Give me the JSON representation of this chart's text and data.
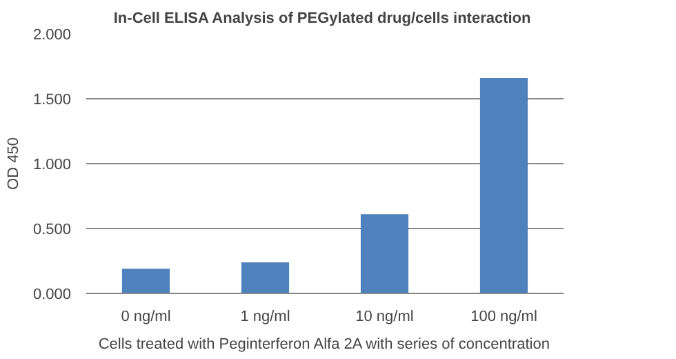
{
  "chart_data": {
    "type": "bar",
    "title": "In-Cell ELISA Analysis  of PEGylated drug/cells interaction",
    "xlabel": "Cells treated with Peginterferon Alfa 2A with series of concentration",
    "ylabel": "OD 450",
    "categories": [
      "0 ng/ml",
      "1 ng/ml",
      "10 ng/ml",
      "100 ng/ml"
    ],
    "values": [
      0.19,
      0.24,
      0.61,
      1.66
    ],
    "color": "#4f81bd",
    "ylim": [
      0,
      2
    ],
    "yticks": [
      {
        "value": 0,
        "label": "0.000"
      },
      {
        "value": 0.5,
        "label": "0.500"
      },
      {
        "value": 1,
        "label": "1.000"
      },
      {
        "value": 1.5,
        "label": "1.500"
      },
      {
        "value": 2,
        "label": "2.000"
      }
    ],
    "grid": "y"
  }
}
